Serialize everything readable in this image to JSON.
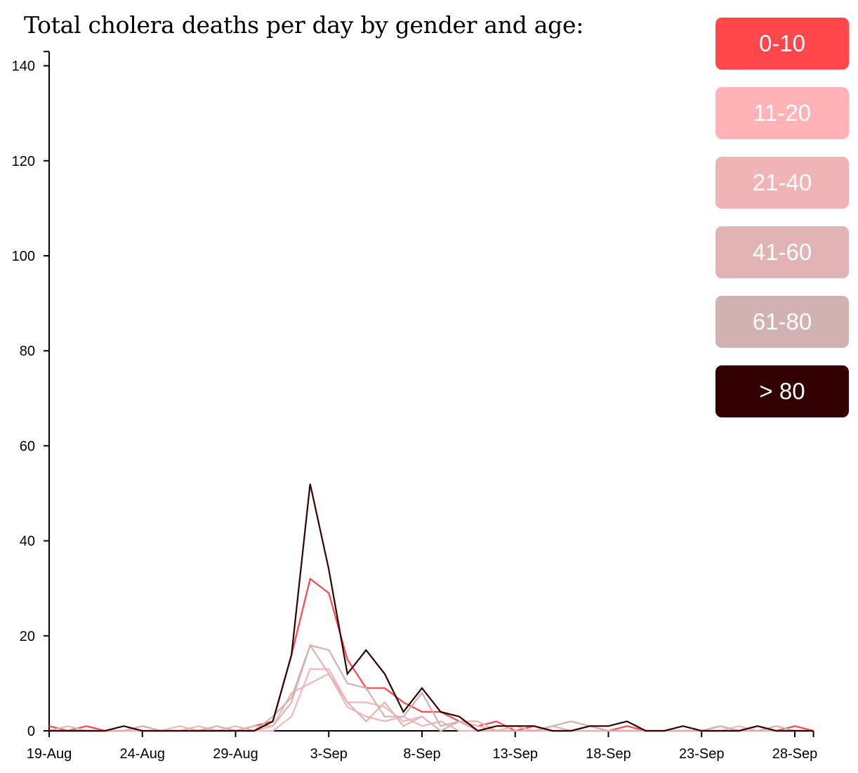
{
  "title": "Total cholera deaths per day by gender and age:",
  "legend": [
    {
      "label": "0-10",
      "color": "#ff474c"
    },
    {
      "label": "11-20",
      "color": "#ffb3b6"
    },
    {
      "label": "21-40",
      "color": "#f0b3b6"
    },
    {
      "label": "41-60",
      "color": "#e2b3b4"
    },
    {
      "label": "61-80",
      "color": "#d1b1b1"
    },
    {
      "label": "> 80",
      "color": "#330000"
    }
  ],
  "chart_data": {
    "type": "line",
    "title": "Total cholera deaths per day by gender and age:",
    "xlabel": "",
    "ylabel": "",
    "x_dates": [
      "19-Aug",
      "20-Aug",
      "21-Aug",
      "22-Aug",
      "23-Aug",
      "24-Aug",
      "25-Aug",
      "26-Aug",
      "27-Aug",
      "28-Aug",
      "29-Aug",
      "30-Aug",
      "31-Aug",
      "1-Sep",
      "2-Sep",
      "3-Sep",
      "4-Sep",
      "5-Sep",
      "6-Sep",
      "7-Sep",
      "8-Sep",
      "9-Sep",
      "10-Sep",
      "11-Sep",
      "12-Sep",
      "13-Sep",
      "14-Sep",
      "15-Sep",
      "16-Sep",
      "17-Sep",
      "18-Sep",
      "19-Sep",
      "20-Sep",
      "21-Sep",
      "22-Sep",
      "23-Sep",
      "24-Sep",
      "25-Sep",
      "26-Sep",
      "27-Sep",
      "28-Sep",
      "29-Sep"
    ],
    "x_ticks": [
      "19-Aug",
      "24-Aug",
      "29-Aug",
      "3-Sep",
      "8-Sep",
      "13-Sep",
      "18-Sep",
      "23-Sep",
      "28-Sep"
    ],
    "y_ticks": [
      0,
      20,
      40,
      60,
      80,
      100,
      120,
      140
    ],
    "ylim": [
      0,
      143
    ],
    "series": [
      {
        "name": "0-10",
        "color": "#ff474c",
        "values": [
          1,
          0,
          1,
          0,
          0,
          0,
          0,
          0,
          0,
          0,
          0,
          1,
          2,
          16,
          32,
          29,
          15,
          9,
          9,
          6,
          4,
          4,
          2,
          1,
          2,
          0,
          1,
          0,
          0,
          1,
          0,
          1,
          0,
          0,
          0,
          0,
          1,
          0,
          1,
          0,
          1,
          0
        ]
      },
      {
        "name": "11-20",
        "color": "#ffb3b6",
        "values": [
          0,
          0,
          0,
          0,
          0,
          0,
          0,
          1,
          0,
          0,
          0,
          0,
          0,
          3,
          13,
          13,
          6,
          6,
          5,
          2,
          3,
          0,
          2,
          1,
          0,
          1,
          0,
          0,
          0,
          0,
          0,
          0,
          0,
          0,
          0,
          0,
          0,
          1,
          0,
          0,
          0,
          0
        ]
      },
      {
        "name": "21-40",
        "color": "#f0b3b6",
        "values": [
          0,
          1,
          0,
          0,
          0,
          0,
          0,
          0,
          1,
          0,
          1,
          0,
          1,
          8,
          10,
          12,
          5,
          3,
          2,
          3,
          1,
          2,
          0,
          0,
          0,
          0,
          0,
          0,
          0,
          0,
          0,
          0,
          0,
          0,
          0,
          0,
          0,
          0,
          0,
          0,
          0,
          0
        ]
      },
      {
        "name": "41-60",
        "color": "#e2b3b4",
        "values": [
          0,
          0,
          0,
          0,
          0,
          1,
          0,
          0,
          0,
          1,
          0,
          1,
          1,
          6,
          18,
          12,
          6,
          2,
          6,
          1,
          3,
          0,
          2,
          2,
          0,
          0,
          0,
          1,
          0,
          0,
          0,
          0,
          0,
          0,
          1,
          0,
          0,
          0,
          0,
          0,
          0,
          0
        ]
      },
      {
        "name": "61-80",
        "color": "#d1b1b1",
        "values": [
          0,
          0,
          0,
          0,
          0,
          1,
          0,
          0,
          0,
          1,
          0,
          0,
          3,
          7,
          18,
          17,
          10,
          9,
          3,
          3,
          8,
          1,
          2,
          0,
          0,
          0,
          0,
          1,
          2,
          1,
          0,
          0,
          0,
          0,
          0,
          0,
          1,
          0,
          0,
          1,
          0,
          0
        ]
      },
      {
        "name": "> 80",
        "color": "#330000",
        "values": [
          0,
          0,
          0,
          0,
          1,
          0,
          0,
          0,
          0,
          0,
          0,
          0,
          2,
          16,
          52,
          34,
          12,
          17,
          12,
          4,
          9,
          4,
          3,
          0,
          1,
          1,
          1,
          0,
          0,
          1,
          1,
          2,
          0,
          0,
          1,
          0,
          0,
          0,
          1,
          0,
          0,
          0
        ]
      }
    ]
  }
}
